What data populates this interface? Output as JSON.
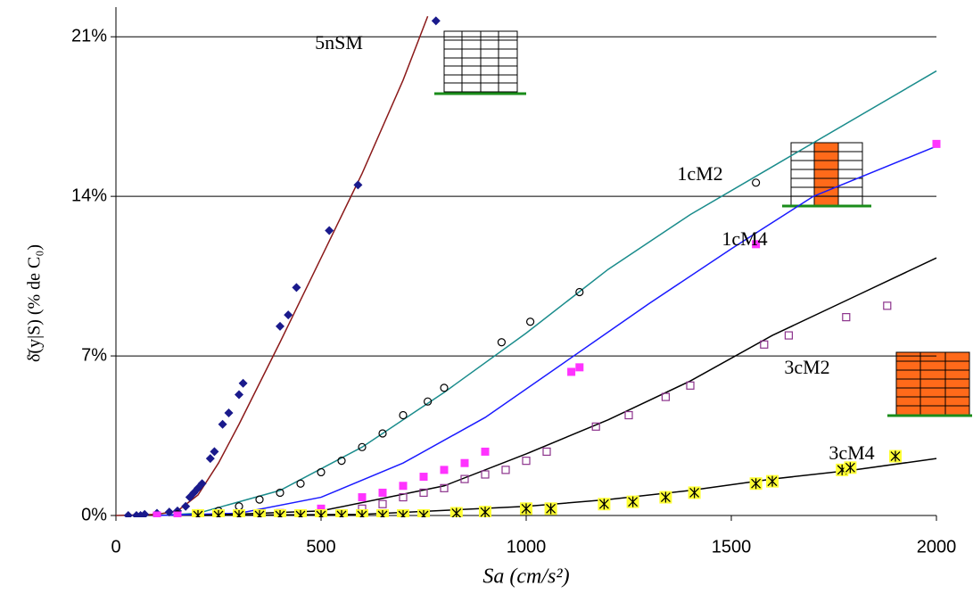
{
  "chart_data": {
    "type": "scatter",
    "y_label": "δ̄(y|S)   (% de C₀)",
    "x_label": "Sa (cm/s²)",
    "xlim": [
      0,
      2000
    ],
    "xticks": [
      0,
      500,
      1000,
      1500,
      2000
    ],
    "ylim": [
      0,
      22.3
    ],
    "yticks": [
      {
        "value": 0,
        "label": "0%"
      },
      {
        "value": 7,
        "label": "7%"
      },
      {
        "value": 14,
        "label": "14%"
      },
      {
        "value": 21,
        "label": "21%"
      }
    ],
    "grid": true,
    "series": [
      {
        "name": "5nSM",
        "color": "#1a1a8c",
        "marker": "diamond",
        "x": [
          30,
          50,
          60,
          70,
          100,
          130,
          150,
          170,
          180,
          190,
          200,
          210,
          230,
          240,
          260,
          275,
          300,
          310,
          400,
          420,
          440,
          520,
          590,
          780
        ],
        "values": [
          0,
          0,
          0,
          0.05,
          0.1,
          0.15,
          0.2,
          0.4,
          0.8,
          1.0,
          1.2,
          1.4,
          2.5,
          2.8,
          4.0,
          4.5,
          5.3,
          5.8,
          8.3,
          8.8,
          10.0,
          12.5,
          14.5,
          21.7
        ],
        "fit": {
          "color": "#8b1a1a",
          "x": [
            0,
            100,
            150,
            200,
            250,
            300,
            400,
            500,
            600,
            700,
            760
          ],
          "values": [
            0,
            0.05,
            0.2,
            0.9,
            2.3,
            4.0,
            7.6,
            11.3,
            15.0,
            19.1,
            21.9
          ]
        }
      },
      {
        "name": "1cM2",
        "color": "#000000",
        "marker": "circle",
        "x": [
          100,
          150,
          200,
          250,
          300,
          350,
          400,
          450,
          500,
          550,
          600,
          650,
          700,
          760,
          800,
          940,
          1010,
          1130,
          1560
        ],
        "values": [
          0,
          0.05,
          0.1,
          0.2,
          0.4,
          0.7,
          1.0,
          1.4,
          1.9,
          2.4,
          3.0,
          3.6,
          4.4,
          5.0,
          5.6,
          7.6,
          8.5,
          9.8,
          14.6
        ],
        "fit": {
          "color": "#1a8c8c",
          "x": [
            100,
            200,
            400,
            600,
            800,
            1000,
            1200,
            1400,
            1600,
            2000
          ],
          "values": [
            0,
            0.1,
            1.1,
            3.0,
            5.4,
            8.0,
            10.8,
            13.2,
            15.3,
            19.5
          ]
        }
      },
      {
        "name": "1cM4",
        "color": "#ff33ff",
        "marker": "square",
        "x": [
          100,
          150,
          200,
          400,
          500,
          600,
          650,
          700,
          750,
          800,
          850,
          900,
          1110,
          1130,
          1560,
          2000
        ],
        "values": [
          0,
          0,
          0,
          0.1,
          0.3,
          0.8,
          1.0,
          1.3,
          1.7,
          2.0,
          2.3,
          2.8,
          6.3,
          6.5,
          11.9,
          16.3
        ],
        "fit": {
          "color": "#1a1aff",
          "x": [
            100,
            300,
            500,
            700,
            900,
            1100,
            1300,
            1500,
            1700,
            2000
          ],
          "values": [
            0,
            0.1,
            0.8,
            2.3,
            4.3,
            6.8,
            9.3,
            11.7,
            14.0,
            16.2
          ]
        }
      },
      {
        "name": "3cM2",
        "color": "#8c338c",
        "marker": "open-square",
        "x": [
          200,
          400,
          600,
          650,
          700,
          750,
          800,
          850,
          900,
          950,
          1000,
          1050,
          1170,
          1250,
          1340,
          1400,
          1580,
          1640,
          1780,
          1880
        ],
        "values": [
          0,
          0.1,
          0.3,
          0.5,
          0.8,
          1.0,
          1.2,
          1.6,
          1.8,
          2.0,
          2.4,
          2.8,
          3.9,
          4.4,
          5.2,
          5.7,
          7.5,
          7.9,
          8.7,
          9.2
        ],
        "fit": {
          "color": "#000000",
          "x": [
            200,
            500,
            800,
            1000,
            1200,
            1400,
            1600,
            1800,
            2000
          ],
          "values": [
            0,
            0.2,
            1.3,
            2.7,
            4.2,
            5.9,
            7.9,
            9.6,
            11.3
          ]
        }
      },
      {
        "name": "3cM4",
        "color": "#ffff33",
        "marker": "star-square",
        "x": [
          200,
          250,
          300,
          350,
          400,
          450,
          500,
          550,
          600,
          650,
          700,
          750,
          830,
          900,
          1000,
          1060,
          1190,
          1260,
          1340,
          1410,
          1560,
          1600,
          1770,
          1790,
          1900
        ],
        "values": [
          0,
          0,
          0,
          0,
          0,
          0,
          0,
          0,
          0,
          0,
          0,
          0,
          0.1,
          0.15,
          0.3,
          0.3,
          0.5,
          0.6,
          0.8,
          1.0,
          1.4,
          1.5,
          2.0,
          2.1,
          2.6
        ],
        "fit": {
          "color": "#000000",
          "x": [
            200,
            600,
            1000,
            1200,
            1400,
            1600,
            1800,
            2000
          ],
          "values": [
            0,
            0.05,
            0.4,
            0.7,
            1.1,
            1.6,
            2.0,
            2.5
          ]
        }
      }
    ]
  }
}
